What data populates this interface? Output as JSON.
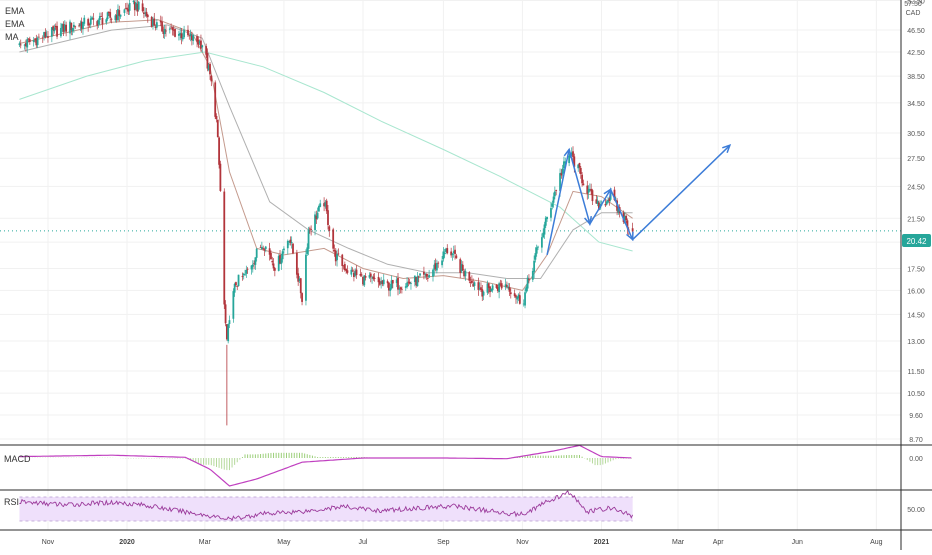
{
  "indicators": {
    "ema1": "EMA",
    "ema2": "EMA",
    "ma": "MA",
    "macd": "MACD",
    "rsi": "RSI"
  },
  "price_axis": {
    "currency": "CAD",
    "top_tick": "57.50",
    "ticks": [
      "52.50",
      "46.50",
      "42.50",
      "38.50",
      "34.50",
      "30.50",
      "27.50",
      "24.50",
      "21.50",
      "19.50",
      "17.50",
      "16.00",
      "14.50",
      "13.00",
      "11.50",
      "10.50",
      "9.60",
      "8.70"
    ],
    "last_price": "20.42",
    "last_price_color": "#26a69a"
  },
  "macd_axis": {
    "ticks": [
      "0.00"
    ]
  },
  "rsi_axis": {
    "ticks": [
      "50.00"
    ]
  },
  "time_axis": {
    "labels": [
      "Nov",
      "2020",
      "Mar",
      "May",
      "Jul",
      "Sep",
      "Nov",
      "2021",
      "Mar",
      "Apr",
      "Jun",
      "Aug"
    ]
  },
  "colors": {
    "up": "#26a69a",
    "down": "#b2343b",
    "ema_fast": "#c49a8d",
    "ema_slow": "#b0b0b0",
    "ma_long": "#a8e6cf",
    "macd_line": "#c040c0",
    "macd_hist": "#9ccf7a",
    "rsi_line": "#9b3a9b",
    "rsi_band": "#efe0fb",
    "drawing": "#3d7dd8"
  },
  "chart_data": {
    "type": "line",
    "scale": "log",
    "series": [],
    "price_path": {
      "x": [
        "2019-10-10",
        "2019-11-15",
        "2019-12-20",
        "2020-01-08",
        "2020-01-25",
        "2020-02-15",
        "2020-02-28",
        "2020-03-05",
        "2020-03-10",
        "2020-03-13",
        "2020-03-16",
        "2020-03-18",
        "2020-03-20",
        "2020-03-25",
        "2020-04-01",
        "2020-04-15",
        "2020-04-25",
        "2020-05-05",
        "2020-05-15",
        "2020-05-20",
        "2020-06-01",
        "2020-06-09",
        "2020-06-20",
        "2020-07-01",
        "2020-07-20",
        "2020-08-05",
        "2020-08-20",
        "2020-09-05",
        "2020-09-15",
        "2020-10-01",
        "2020-10-20",
        "2020-11-01",
        "2020-11-10",
        "2020-11-20",
        "2020-12-01",
        "2020-12-08",
        "2020-12-18",
        "2020-12-28",
        "2021-01-08",
        "2021-01-15",
        "2021-01-25"
      ],
      "y": [
        43.5,
        47.0,
        49.0,
        51.5,
        47.0,
        45.5,
        44.0,
        38.5,
        32.0,
        24.0,
        15.0,
        12.8,
        14.5,
        16.5,
        17.0,
        19.5,
        17.5,
        20.0,
        15.5,
        20.5,
        23.0,
        18.5,
        17.3,
        16.8,
        16.3,
        16.5,
        16.9,
        19.0,
        17.4,
        16.0,
        16.4,
        15.2,
        18.0,
        21.5,
        26.0,
        28.0,
        25.0,
        22.5,
        23.5,
        22.0,
        20.42
      ]
    },
    "low_point": {
      "x": "2020-03-18",
      "y": 9.2
    },
    "ema_fast": {
      "x": [
        "2019-10-10",
        "2019-12-20",
        "2020-01-25",
        "2020-02-20",
        "2020-03-05",
        "2020-03-20",
        "2020-04-10",
        "2020-05-01",
        "2020-06-01",
        "2020-07-01",
        "2020-08-01",
        "2020-09-01",
        "2020-10-01",
        "2020-11-01",
        "2020-11-20",
        "2020-12-10",
        "2021-01-01",
        "2021-01-25"
      ],
      "y": [
        44.0,
        48.0,
        48.5,
        46.0,
        40.0,
        26.0,
        19.0,
        18.5,
        19.0,
        17.5,
        16.8,
        17.0,
        16.6,
        16.0,
        18.5,
        24.0,
        23.5,
        21.5
      ]
    },
    "ema_slow": {
      "x": [
        "2019-10-10",
        "2019-12-20",
        "2020-02-01",
        "2020-02-28",
        "2020-03-20",
        "2020-04-20",
        "2020-05-20",
        "2020-06-20",
        "2020-07-20",
        "2020-08-20",
        "2020-09-20",
        "2020-10-20",
        "2020-11-15",
        "2020-12-10",
        "2021-01-01",
        "2021-01-25"
      ],
      "y": [
        42.5,
        46.5,
        47.5,
        45.0,
        34.0,
        23.0,
        20.5,
        19.0,
        17.8,
        17.2,
        17.2,
        16.8,
        16.8,
        20.5,
        22.0,
        22.0
      ]
    },
    "ma_long": {
      "x": [
        "2019-10-10",
        "2019-12-01",
        "2020-01-15",
        "2020-03-01",
        "2020-04-15",
        "2020-06-01",
        "2020-07-15",
        "2020-09-01",
        "2020-10-15",
        "2020-11-30",
        "2020-12-30",
        "2021-01-25"
      ],
      "y": [
        35.0,
        38.5,
        41.0,
        42.5,
        40.0,
        36.0,
        32.0,
        28.5,
        25.5,
        22.5,
        19.5,
        18.8
      ]
    },
    "projection": {
      "x": [
        "2020-11-20",
        "2020-12-07",
        "2020-12-23",
        "2021-01-08",
        "2021-01-25",
        "2021-04-10"
      ],
      "y": [
        18.5,
        28.5,
        21.0,
        24.2,
        19.7,
        29.0
      ]
    },
    "macd": {
      "x": [
        "2019-10-10",
        "2019-12-20",
        "2020-02-15",
        "2020-03-05",
        "2020-03-20",
        "2020-04-10",
        "2020-05-15",
        "2020-07-01",
        "2020-09-01",
        "2020-10-20",
        "2020-11-25",
        "2020-12-15",
        "2021-01-01",
        "2021-01-25"
      ],
      "y": [
        0.1,
        0.2,
        0.05,
        -0.8,
        -2.0,
        -1.5,
        -0.3,
        0.0,
        0.0,
        -0.05,
        0.5,
        0.9,
        0.1,
        0.0
      ]
    },
    "rsi": {
      "x": [
        "2019-10-10",
        "2019-11-15",
        "2019-12-20",
        "2020-01-10",
        "2020-02-10",
        "2020-03-01",
        "2020-03-20",
        "2020-04-15",
        "2020-05-20",
        "2020-06-15",
        "2020-07-15",
        "2020-08-15",
        "2020-09-10",
        "2020-10-15",
        "2020-11-01",
        "2020-11-20",
        "2020-12-08",
        "2020-12-20",
        "2021-01-08",
        "2021-01-25"
      ],
      "y": [
        62,
        57,
        61,
        58,
        47,
        40,
        33,
        42,
        47,
        54,
        47,
        52,
        55,
        44,
        41,
        62,
        78,
        45,
        52,
        38
      ]
    }
  }
}
